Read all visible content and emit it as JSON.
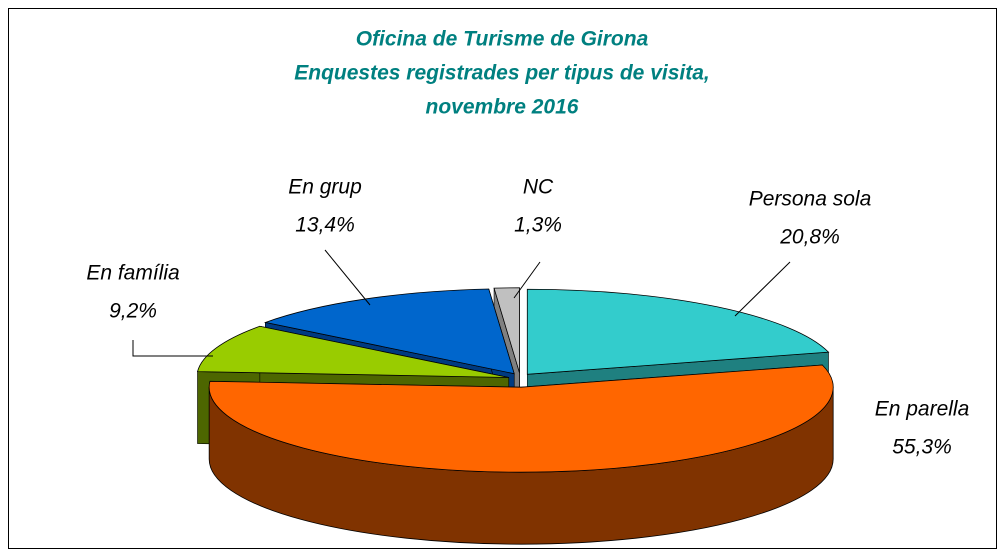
{
  "chart_data": {
    "type": "pie3d",
    "title": [
      "Oficina de Turisme de Girona",
      "Enquestes registrades per tipus de visita,",
      "novembre 2016"
    ],
    "categories": [
      "Persona sola",
      "En parella",
      "En família",
      "En grup",
      "NC"
    ],
    "values": [
      20.8,
      55.3,
      9.2,
      13.4,
      1.3
    ],
    "value_labels": [
      "20,8%",
      "55,3%",
      "9,2%",
      "13,4%",
      "1,3%"
    ],
    "colors": [
      "#33cccc",
      "#ff6600",
      "#99cc00",
      "#0066cc",
      "#c0c0c0"
    ],
    "side_colors": [
      "#1f8080",
      "#803300",
      "#4d6600",
      "#003a80",
      "#808080"
    ]
  }
}
